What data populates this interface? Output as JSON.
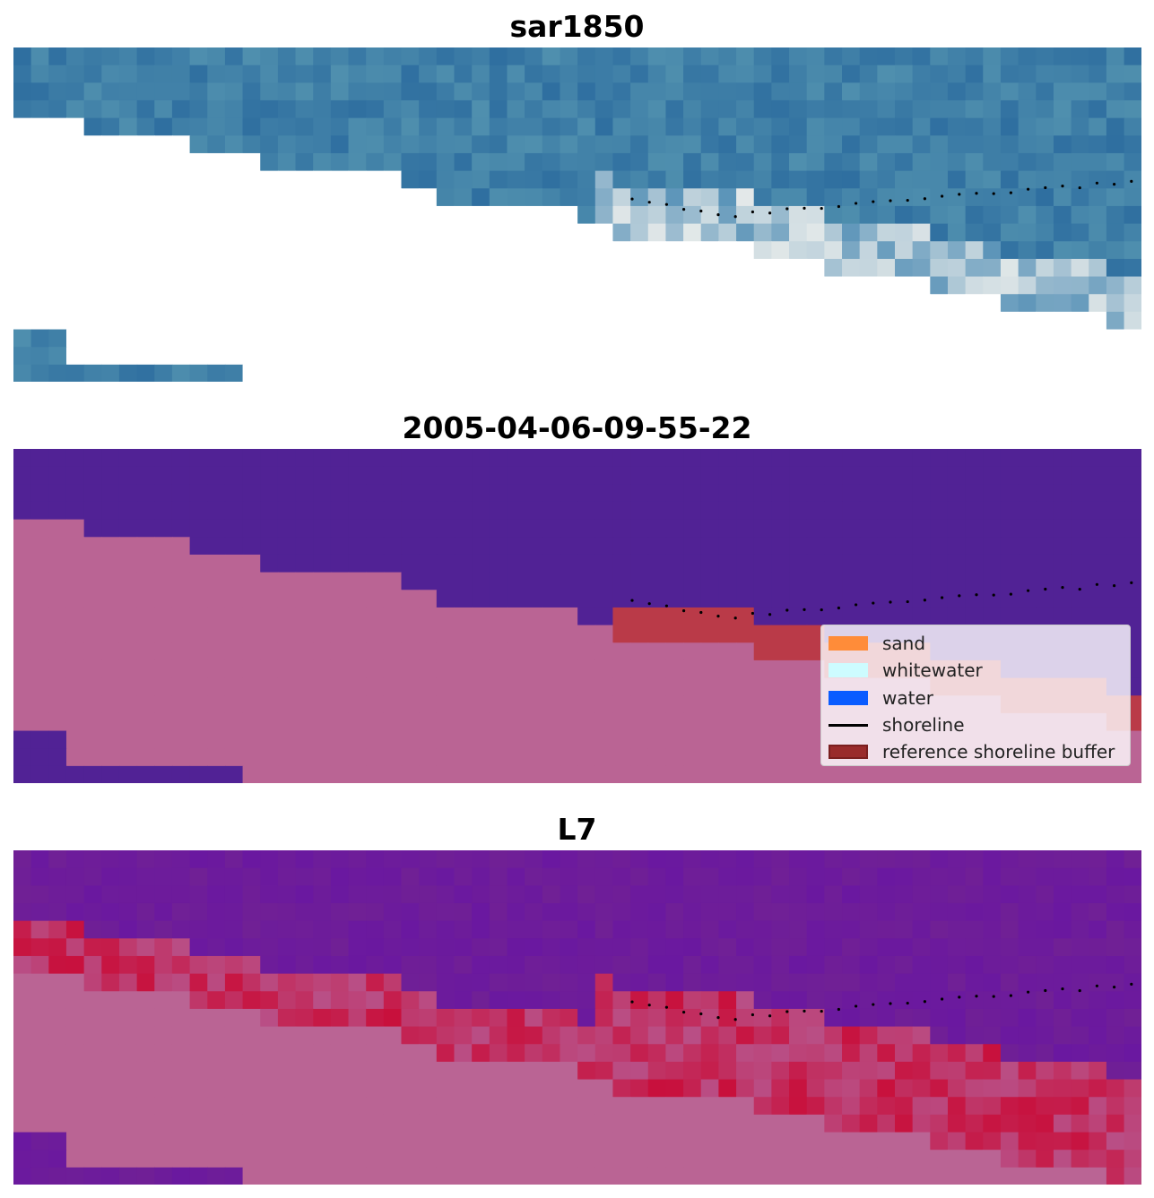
{
  "panels": [
    {
      "title": "sar1850",
      "style": "sar"
    },
    {
      "title": "2005-04-06-09-55-22",
      "style": "class"
    },
    {
      "title": "L7",
      "style": "index"
    }
  ],
  "legend": {
    "items": [
      {
        "label": "sand",
        "color": "#ff8c39",
        "kind": "patch"
      },
      {
        "label": "whitewater",
        "color": "#cdfcff",
        "kind": "patch"
      },
      {
        "label": "water",
        "color": "#0a5cff",
        "kind": "patch"
      },
      {
        "label": "shoreline",
        "color": "#000000",
        "kind": "line"
      },
      {
        "label": "reference shoreline buffer",
        "color": "#992b2b",
        "kind": "patch-edged"
      }
    ]
  },
  "colors": {
    "land_nodata": "#ffffff",
    "class_land": "#ba6494",
    "class_water": "#512295",
    "class_buffer": "#ba3a48",
    "index_high": "#702095",
    "index_low": "#c8103c",
    "sar_water": "#3a7aa8"
  }
}
